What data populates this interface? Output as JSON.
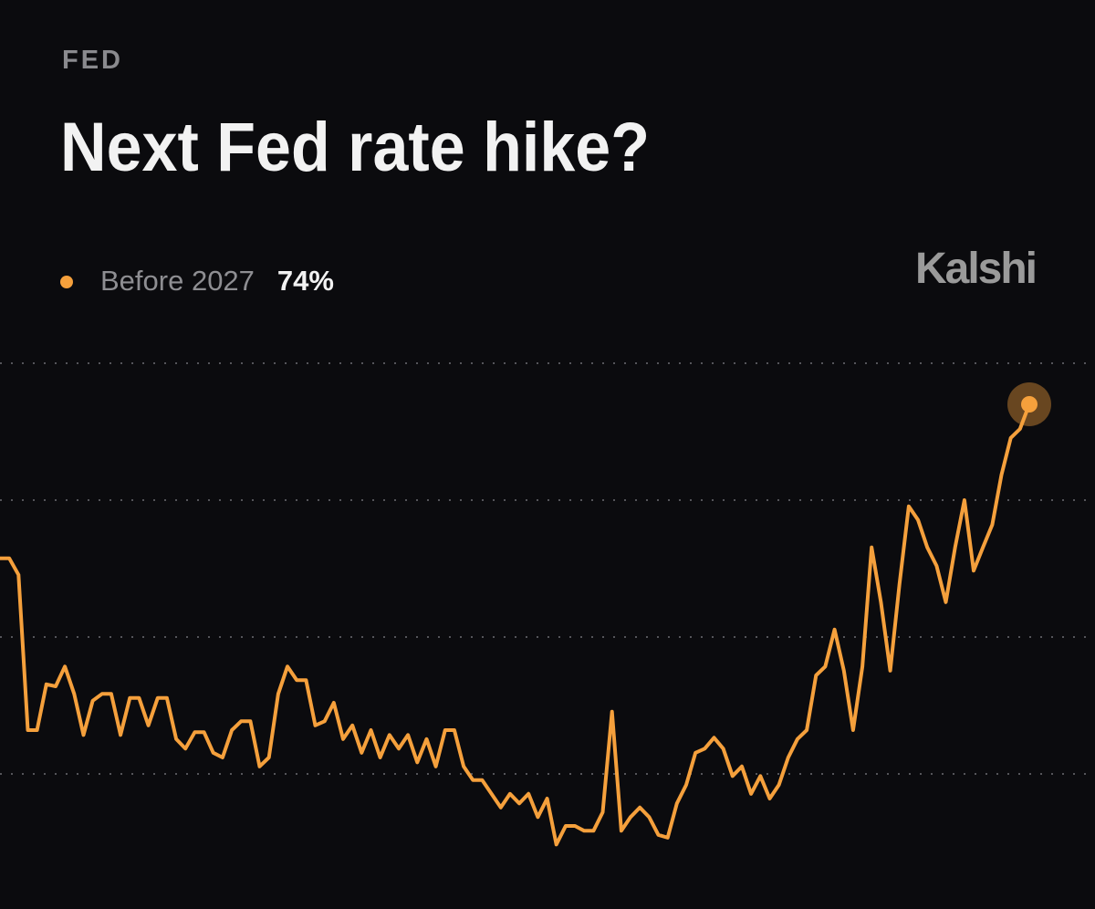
{
  "chart_data": {
    "type": "line",
    "category": "FED",
    "title": "Next Fed rate hike?",
    "brand": "Kalshi",
    "ylim": [
      0,
      80
    ],
    "yticks": [
      20,
      40,
      60,
      80
    ],
    "grid": true,
    "series": [
      {
        "name": "Before 2027",
        "color": "#f5a03c",
        "last_value_label": "74%",
        "values": [
          51.5,
          51.5,
          49.1,
          26.4,
          26.4,
          33.1,
          32.8,
          35.7,
          31.7,
          25.7,
          30.7,
          31.7,
          31.7,
          25.7,
          31.1,
          31.1,
          27.1,
          31.1,
          31.1,
          25.1,
          23.7,
          26.1,
          26.1,
          23.1,
          22.4,
          26.4,
          27.7,
          27.7,
          21.1,
          22.4,
          31.7,
          35.7,
          33.7,
          33.7,
          27.1,
          27.7,
          30.4,
          25.1,
          27.1,
          23.1,
          26.4,
          22.4,
          25.7,
          23.7,
          25.7,
          21.7,
          25.1,
          21.1,
          26.4,
          26.4,
          21.1,
          19.1,
          19.1,
          17.1,
          15.1,
          17.1,
          15.7,
          17.1,
          13.7,
          16.4,
          9.7,
          12.4,
          12.4,
          11.7,
          11.7,
          14.4,
          29.1,
          11.7,
          13.7,
          15.1,
          13.7,
          11.1,
          10.7,
          15.7,
          18.4,
          23.1,
          23.7,
          25.3,
          23.7,
          19.7,
          21.1,
          17.1,
          19.7,
          16.4,
          18.4,
          22.4,
          25.1,
          26.4,
          34.4,
          35.7,
          41.1,
          35.1,
          26.4,
          35.7,
          53.1,
          45.1,
          35.1,
          47.7,
          59.1,
          57.1,
          53.1,
          50.4,
          45.1,
          53.1,
          60,
          49.7,
          53.1,
          56.4,
          63.7,
          69.1,
          70.4,
          74
        ]
      }
    ]
  }
}
